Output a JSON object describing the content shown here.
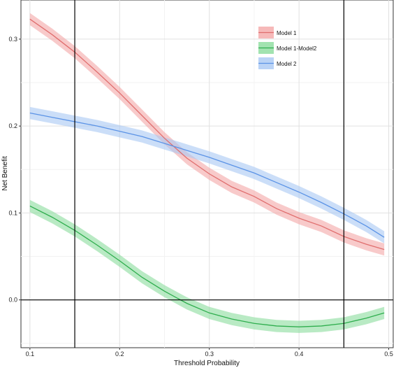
{
  "chart_data": {
    "type": "line",
    "title": "",
    "xlabel": "Threshold Probability",
    "ylabel": "Net Benefit",
    "xlim": [
      0.09,
      0.505
    ],
    "ylim": [
      -0.055,
      0.345
    ],
    "x_ticks": [
      0.1,
      0.2,
      0.3,
      0.4,
      0.5
    ],
    "x_tick_labels": [
      "0.1",
      "0.2",
      "0.3",
      "0.4",
      "0.5"
    ],
    "y_ticks": [
      0.0,
      0.1,
      0.2,
      0.3
    ],
    "y_tick_labels": [
      "0.0",
      "0.1",
      "0.2",
      "0.3"
    ],
    "grid": true,
    "legend_position": "top-right",
    "reference_lines": {
      "vertical": [
        0.15,
        0.45
      ],
      "horizontal": [
        0.0
      ]
    },
    "series": [
      {
        "name": "Model 1",
        "color": "#e06e6e",
        "band_color": "#f4a7a7",
        "band_halfwidth": 0.007,
        "x": [
          0.1,
          0.125,
          0.15,
          0.175,
          0.2,
          0.225,
          0.25,
          0.275,
          0.3,
          0.325,
          0.35,
          0.375,
          0.4,
          0.425,
          0.45,
          0.475,
          0.495
        ],
        "y": [
          0.323,
          0.305,
          0.285,
          0.262,
          0.238,
          0.212,
          0.186,
          0.163,
          0.145,
          0.13,
          0.119,
          0.105,
          0.094,
          0.085,
          0.073,
          0.064,
          0.058
        ]
      },
      {
        "name": "Model 1-Model2",
        "color": "#2fae4e",
        "band_color": "#8bdc9c",
        "band_halfwidth": 0.007,
        "x": [
          0.1,
          0.125,
          0.15,
          0.175,
          0.2,
          0.225,
          0.25,
          0.275,
          0.3,
          0.325,
          0.35,
          0.375,
          0.4,
          0.425,
          0.45,
          0.475,
          0.495
        ],
        "y": [
          0.108,
          0.095,
          0.08,
          0.063,
          0.045,
          0.026,
          0.01,
          -0.004,
          -0.015,
          -0.022,
          -0.027,
          -0.03,
          -0.031,
          -0.03,
          -0.027,
          -0.021,
          -0.015
        ]
      },
      {
        "name": "Model 2",
        "color": "#5b93e6",
        "band_color": "#a9c8f4",
        "band_halfwidth": 0.007,
        "x": [
          0.1,
          0.125,
          0.15,
          0.175,
          0.2,
          0.225,
          0.25,
          0.275,
          0.3,
          0.325,
          0.35,
          0.375,
          0.4,
          0.425,
          0.45,
          0.475,
          0.495
        ],
        "y": [
          0.215,
          0.21,
          0.205,
          0.2,
          0.194,
          0.188,
          0.18,
          0.172,
          0.164,
          0.155,
          0.146,
          0.135,
          0.124,
          0.112,
          0.099,
          0.085,
          0.072
        ]
      }
    ]
  }
}
